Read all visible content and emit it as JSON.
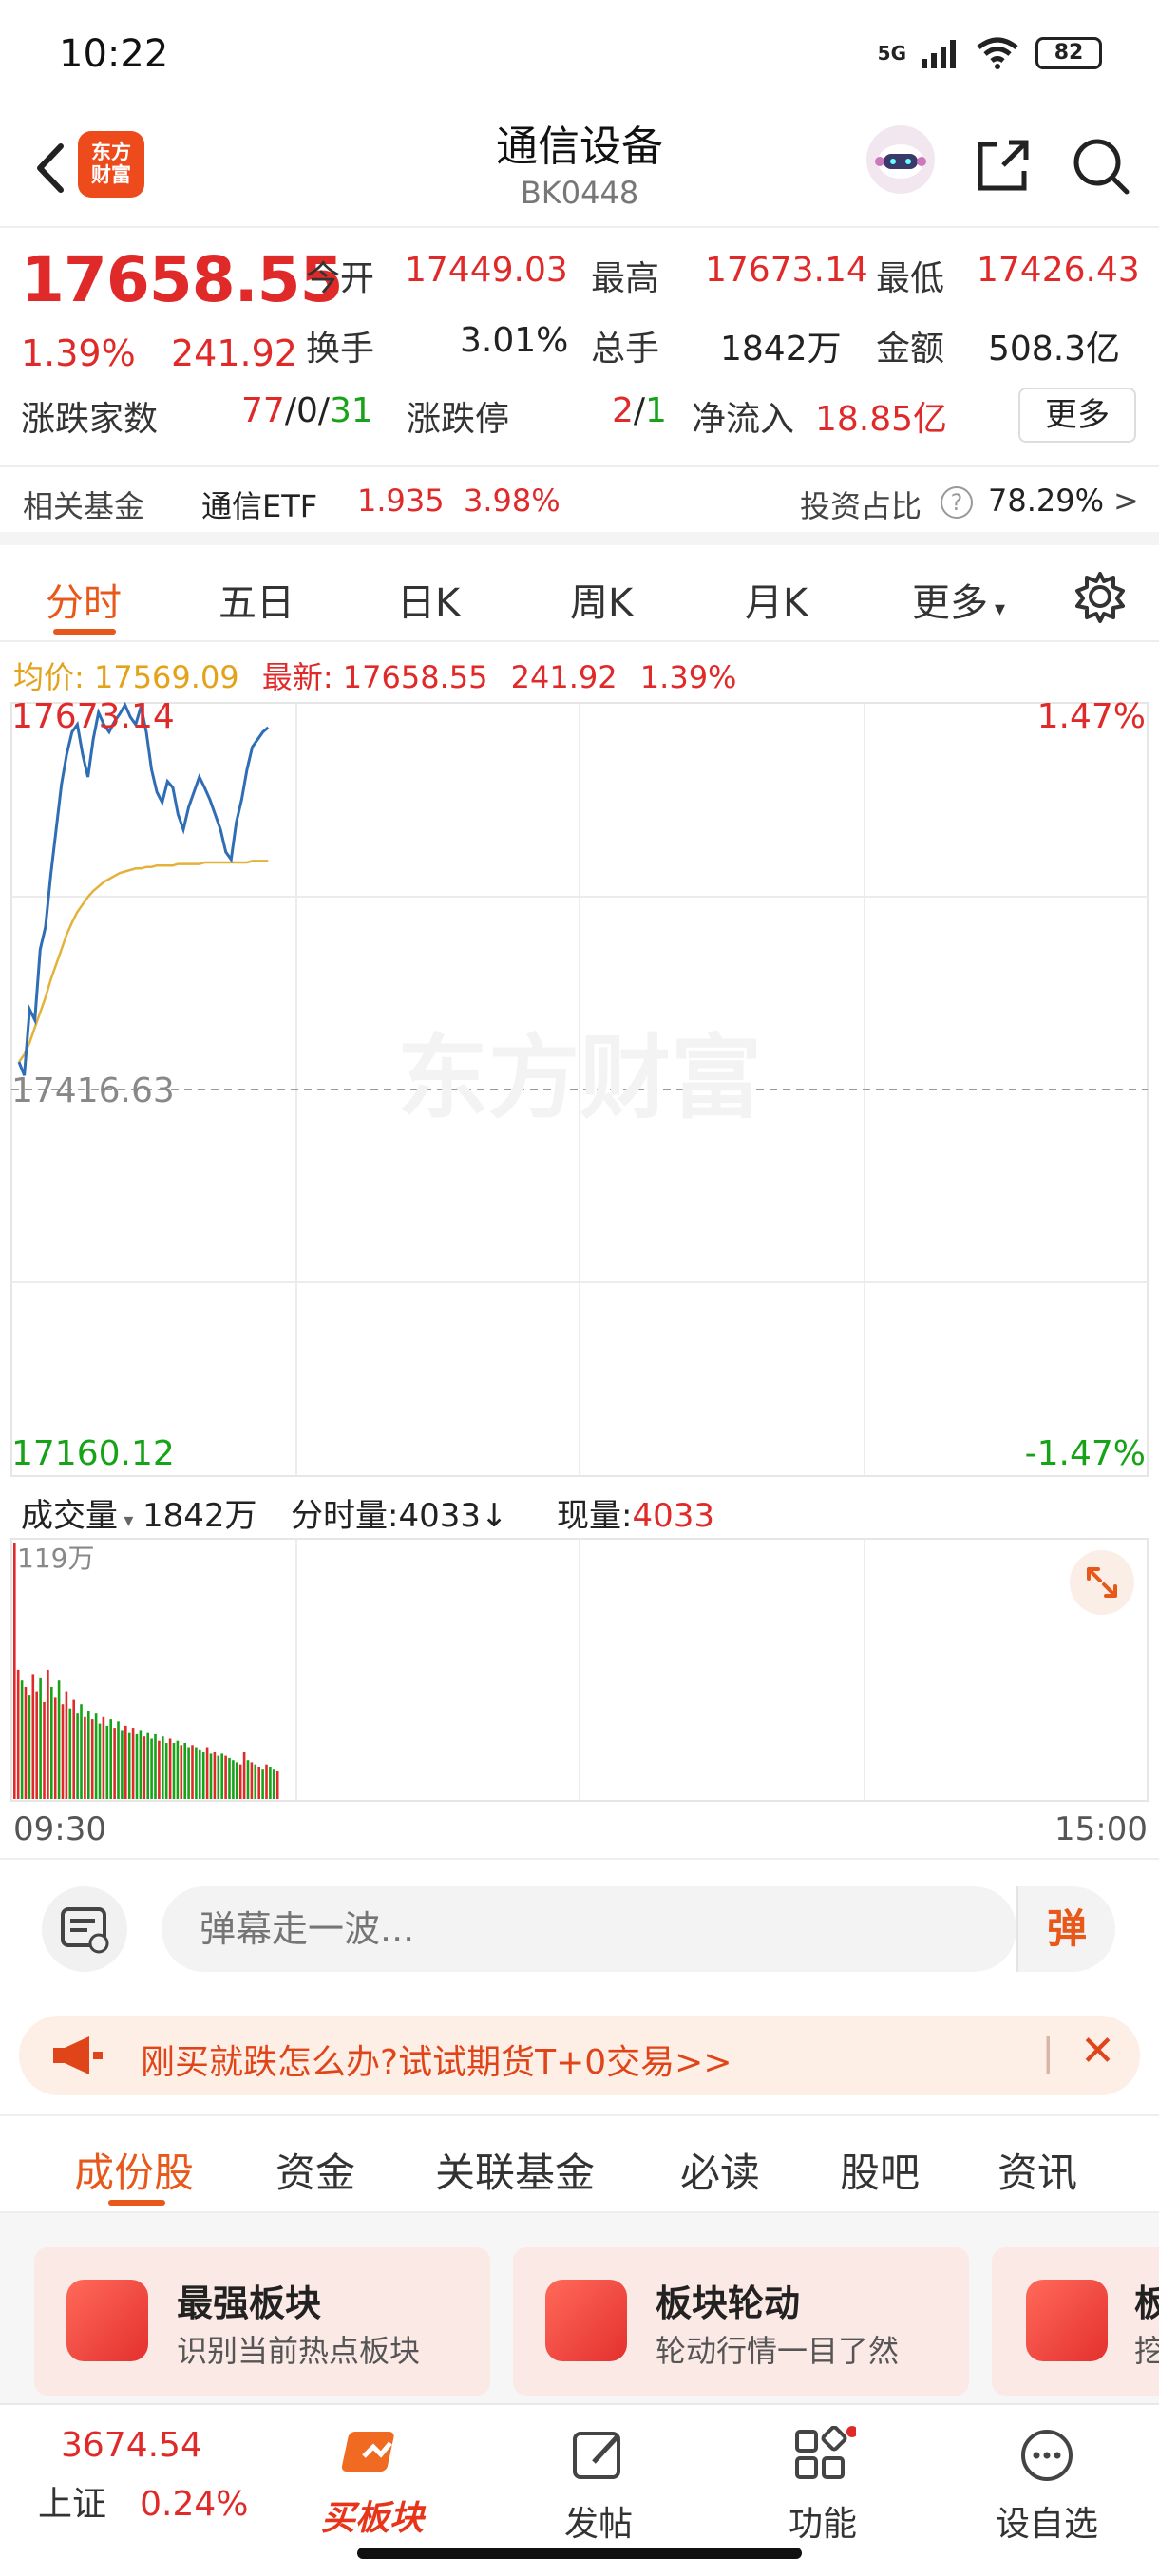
{
  "status_bar": {
    "time": "10:22",
    "network": "5G",
    "battery": "82"
  },
  "header": {
    "title": "通信设备",
    "code": "BK0448",
    "logo_text_line1": "东方",
    "logo_text_line2": "财富"
  },
  "quote": {
    "last_price": "17658.55",
    "change_pct": "1.39%",
    "change_abs": "241.92",
    "open_label": "今开",
    "open_value": "17449.03",
    "high_label": "最高",
    "high_value": "17673.14",
    "low_label": "最低",
    "low_value": "17426.43",
    "turnover_label": "换手",
    "turnover_value": "3.01%",
    "volume_label": "总手",
    "volume_value": "1842万",
    "amount_label": "金额",
    "amount_value": "508.3亿",
    "updown_label": "涨跌家数",
    "up_count": "77",
    "flat_count": "0",
    "down_count": "31",
    "limit_label": "涨跌停",
    "limit_up": "2",
    "limit_down": "1",
    "netflow_label": "净流入",
    "netflow_value": "18.85亿",
    "more_label": "更多"
  },
  "fund": {
    "label": "相关基金",
    "name": "通信ETF",
    "price": "1.935",
    "pct": "3.98%",
    "ratio_label": "投资占比",
    "ratio_value": "78.29%"
  },
  "chart_tabs": [
    "分时",
    "五日",
    "日K",
    "周K",
    "月K",
    "更多"
  ],
  "avg_row": {
    "avg_label": "均价:",
    "avg_value": "17569.09",
    "latest_label": "最新:",
    "latest_value": "17658.55",
    "latest_change": "241.92",
    "latest_pct": "1.39%"
  },
  "chart_labels": {
    "top_price": "17673.14",
    "top_pct": "1.47%",
    "mid_price": "17416.63",
    "bottom_price": "17160.12",
    "bottom_pct": "-1.47%",
    "watermark": "东方财富"
  },
  "chart_data": {
    "type": "line",
    "ylim": [
      17160.12,
      17673.14
    ],
    "prev_close": 17416.63,
    "series": [
      {
        "name": "最新",
        "values": [
          17435,
          17426,
          17470,
          17463,
          17510,
          17525,
          17560,
          17590,
          17620,
          17640,
          17655,
          17660,
          17640,
          17625,
          17650,
          17668,
          17660,
          17655,
          17662,
          17667,
          17673,
          17665,
          17660,
          17672,
          17655,
          17630,
          17615,
          17608,
          17622,
          17618,
          17600,
          17590,
          17605,
          17615,
          17625,
          17618,
          17610,
          17600,
          17590,
          17575,
          17570,
          17595,
          17610,
          17630,
          17645,
          17650,
          17655,
          17658
        ]
      },
      {
        "name": "均价",
        "values": [
          17435,
          17440,
          17448,
          17458,
          17468,
          17478,
          17490,
          17500,
          17510,
          17520,
          17528,
          17535,
          17540,
          17545,
          17549,
          17552,
          17555,
          17557,
          17559,
          17561,
          17562,
          17563,
          17564,
          17564,
          17565,
          17565,
          17566,
          17566,
          17566,
          17566,
          17567,
          17567,
          17567,
          17567,
          17567,
          17568,
          17568,
          17568,
          17568,
          17568,
          17568,
          17568,
          17568,
          17568,
          17569,
          17569,
          17569,
          17569
        ]
      }
    ]
  },
  "volume_row": {
    "label": "成交量",
    "total": "1842万",
    "minute_label": "分时量:",
    "minute_value": "4033↓",
    "current_label": "现量:",
    "current_value": "4033",
    "axis_max": "119万"
  },
  "volume_data": {
    "values": [
      119,
      60,
      55,
      52,
      48,
      58,
      50,
      56,
      45,
      60,
      52,
      47,
      55,
      44,
      50,
      42,
      46,
      40,
      44,
      38,
      41,
      37,
      40,
      35,
      38,
      34,
      37,
      33,
      36,
      32,
      34,
      31,
      33,
      30,
      32,
      29,
      31,
      28,
      30,
      27,
      29,
      26,
      28,
      26,
      27,
      25,
      26,
      24,
      25,
      24,
      23,
      22,
      24,
      21,
      22,
      20,
      21,
      20,
      19,
      18,
      17,
      16,
      22,
      18,
      17,
      16,
      15,
      14,
      16,
      15,
      14,
      13
    ],
    "colors": [
      "r",
      "r",
      "g",
      "r",
      "g",
      "r",
      "r",
      "g",
      "r",
      "r",
      "g",
      "r",
      "g",
      "r",
      "r",
      "g",
      "r",
      "g",
      "g",
      "r",
      "g",
      "r",
      "g",
      "g",
      "r",
      "g",
      "g",
      "r",
      "g",
      "g",
      "r",
      "g",
      "r",
      "g",
      "g",
      "r",
      "g",
      "g",
      "g",
      "r",
      "g",
      "g",
      "r",
      "g",
      "g",
      "r",
      "g",
      "g",
      "r",
      "g",
      "g",
      "g",
      "r",
      "g",
      "r",
      "g",
      "g",
      "r",
      "g",
      "g",
      "g",
      "r",
      "r",
      "g",
      "r",
      "g",
      "r",
      "g",
      "r",
      "g",
      "g",
      "r"
    ]
  },
  "time_axis": {
    "start": "09:30",
    "end": "15:00"
  },
  "danmu": {
    "placeholder": "弹幕走一波...",
    "send_label": "弹"
  },
  "promo": {
    "text": "刚买就跌怎么办?试试期货T+0交易>>"
  },
  "sub_tabs": [
    "成份股",
    "资金",
    "关联基金",
    "必读",
    "股吧",
    "资讯"
  ],
  "cards": [
    {
      "title": "最强板块",
      "sub": "识别当前热点板块"
    },
    {
      "title": "板块轮动",
      "sub": "轮动行情一目了然"
    },
    {
      "title": "板",
      "sub": "挖"
    }
  ],
  "bottom_nav": {
    "index_value": "3674.54",
    "index_name": "上证",
    "index_pct": "0.24%",
    "buy_label": "买板块",
    "post_label": "发帖",
    "func_label": "功能",
    "watch_label": "设自选"
  },
  "colors": {
    "up": "#e02a2a",
    "down": "#17a317",
    "accent": "#e8581a",
    "price_line": "#2f6db5",
    "avg_line": "#e3b23a"
  }
}
